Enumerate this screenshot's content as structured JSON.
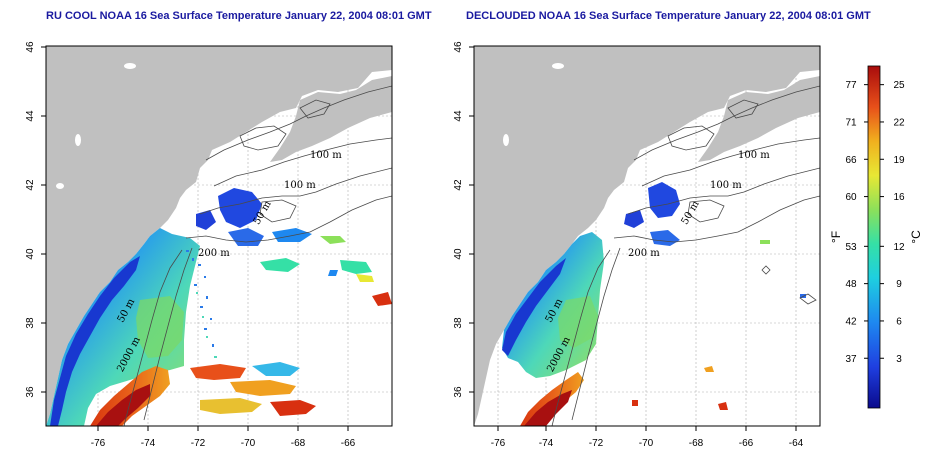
{
  "panels": [
    {
      "title": "RU COOL NOAA 16 Sea Surface Temperature January 22, 2004 08:01 GMT",
      "depth_labels": [
        "100 m",
        "100 m",
        "50 m",
        "200 m",
        "50 m",
        "2000 m"
      ]
    },
    {
      "title": "DECLOUDED NOAA 16 Sea Surface Temperature January 22, 2004 08:01 GMT",
      "depth_labels": [
        "100 m",
        "100 m",
        "50 m",
        "200 m",
        "50 m",
        "2000 m"
      ]
    }
  ],
  "axes": {
    "x_ticks": [
      -76,
      -74,
      -72,
      -70,
      -68,
      -66,
      -64
    ],
    "y_ticks": [
      36,
      38,
      40,
      42,
      44,
      46
    ],
    "x_range": [
      -77.2,
      -62.8
    ],
    "y_range": [
      35.0,
      46.0
    ]
  },
  "colorbar": {
    "fahrenheit_ticks": [
      77,
      71,
      66,
      60,
      53,
      48,
      42,
      37
    ],
    "celsius_ticks": [
      25,
      22,
      19,
      16,
      12,
      9,
      6,
      3
    ],
    "fahrenheit_label": "°F",
    "celsius_label": "°C",
    "celsius_range": [
      -1,
      26.5
    ],
    "colors": [
      "#0a0a8c",
      "#1f3fe0",
      "#1e88f0",
      "#1ecfe0",
      "#35e0a6",
      "#8ce05a",
      "#e8e834",
      "#f0b01e",
      "#e8501a",
      "#a80c0c"
    ]
  },
  "colors": {
    "land": "#c0c0c0",
    "grid": "#b0b0b0",
    "contour": "#4a4a4a",
    "title": "#1a1aa0"
  }
}
